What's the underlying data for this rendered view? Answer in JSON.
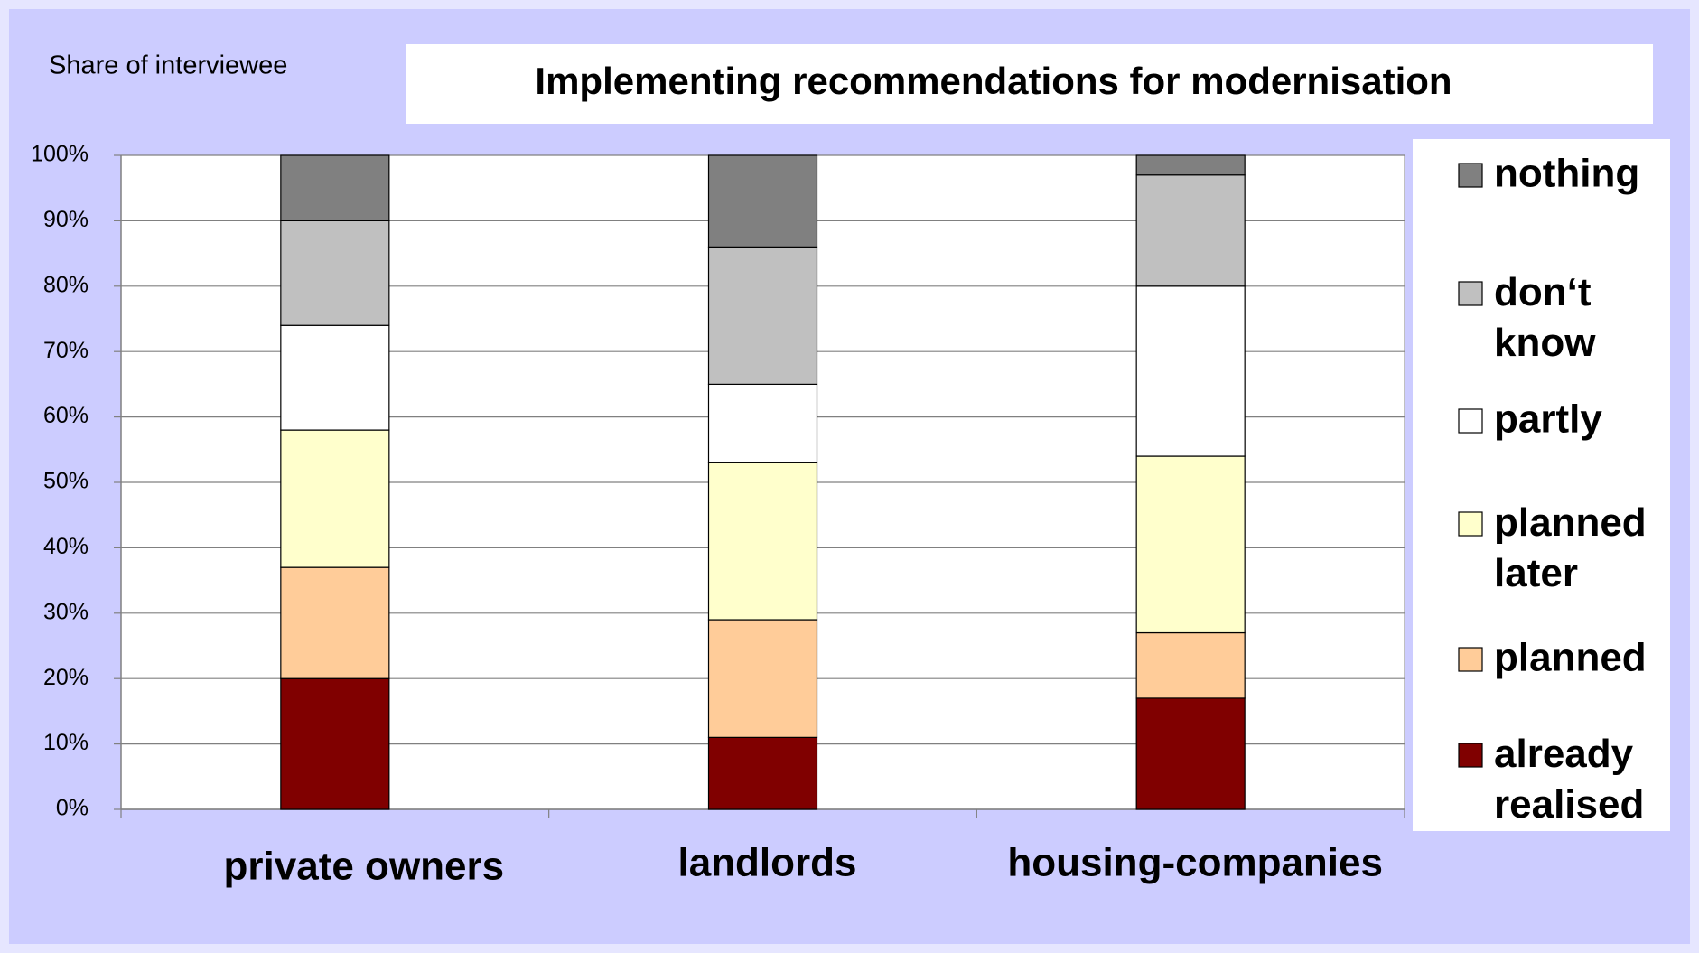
{
  "chart_data": {
    "type": "stacked_bar",
    "title": "Implementing recommendations for modernisation",
    "y_label": "Share of interviewee",
    "categories": [
      "private owners",
      "landlords",
      "housing-companies"
    ],
    "series": [
      {
        "name": "already realised",
        "color": "#800000",
        "values": [
          20,
          11,
          17
        ]
      },
      {
        "name": "planned",
        "color": "#ffcc99",
        "values": [
          17,
          18,
          10
        ]
      },
      {
        "name": "planned later",
        "color": "#ffffcc",
        "values": [
          21,
          24,
          27
        ]
      },
      {
        "name": "partly",
        "color": "#ffffff",
        "values": [
          16,
          12,
          26
        ]
      },
      {
        "name": "don‘t know",
        "color": "#c0c0c0",
        "values": [
          16,
          21,
          17
        ]
      },
      {
        "name": "nothing",
        "color": "#808080",
        "values": [
          10,
          14,
          3
        ]
      }
    ],
    "ylim": [
      0,
      100
    ],
    "yticks": [
      {
        "value": 0,
        "label": "0%"
      },
      {
        "value": 10,
        "label": "10%"
      },
      {
        "value": 20,
        "label": "20%"
      },
      {
        "value": 30,
        "label": "30%"
      },
      {
        "value": 40,
        "label": "40%"
      },
      {
        "value": 50,
        "label": "50%"
      },
      {
        "value": 60,
        "label": "60%"
      },
      {
        "value": 70,
        "label": "70%"
      },
      {
        "value": 80,
        "label": "80%"
      },
      {
        "value": 90,
        "label": "90%"
      },
      {
        "value": 100,
        "label": "100%"
      }
    ],
    "grid": true,
    "legend": "right"
  }
}
